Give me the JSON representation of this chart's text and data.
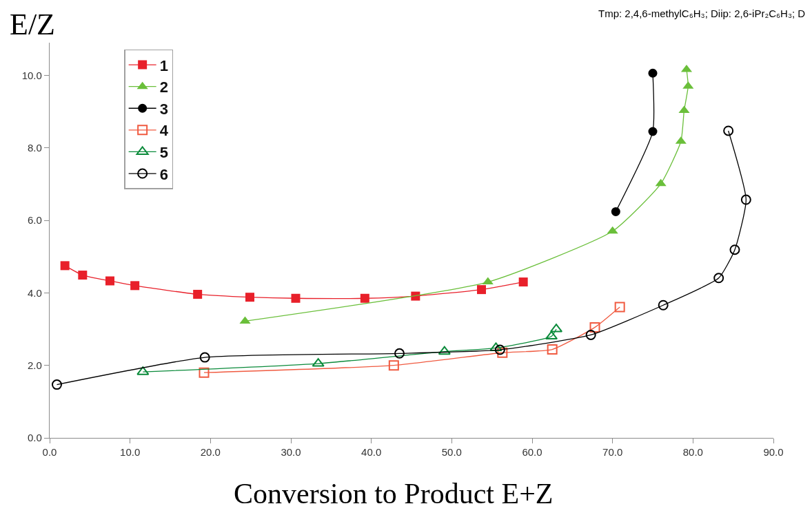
{
  "chart_data": {
    "type": "line",
    "xlabel": "Conversion to Product E+Z",
    "ylabel": "E/Z",
    "annotations": [
      "Tmp: 2,4,6-methylC₆H₃; Diip: 2,6-iPr₂C₆H₃; D"
    ],
    "xlim": [
      0,
      90
    ],
    "xticks": [
      {
        "value": 0,
        "label": "0.0"
      },
      {
        "value": 10,
        "label": "10.0"
      },
      {
        "value": 20,
        "label": "20.0"
      },
      {
        "value": 30,
        "label": "30.0"
      },
      {
        "value": 40,
        "label": "40.0"
      },
      {
        "value": 50,
        "label": "50.0"
      },
      {
        "value": 60,
        "label": "60.0"
      },
      {
        "value": 70,
        "label": "70.0"
      },
      {
        "value": 80,
        "label": "80.0"
      },
      {
        "value": 90,
        "label": "90.0"
      }
    ],
    "ylim": [
      0,
      10.9
    ],
    "yticks": [
      {
        "value": 0,
        "label": "0.0"
      },
      {
        "value": 2,
        "label": "2.0"
      },
      {
        "value": 4,
        "label": "4.0"
      },
      {
        "value": 6,
        "label": "6.0"
      },
      {
        "value": 8,
        "label": "8.0"
      },
      {
        "value": 10,
        "label": "10.0"
      }
    ],
    "grid": false,
    "legend": "top left",
    "line_style": "solid",
    "series": [
      {
        "name": "1",
        "color": "#e8202a",
        "marker": "square",
        "x": [
          1.9,
          4.1,
          7.5,
          10.6,
          18.4,
          24.9,
          30.6,
          39.2,
          45.5,
          53.7,
          58.9
        ],
        "values": [
          4.75,
          4.49,
          4.33,
          4.2,
          3.96,
          3.88,
          3.85,
          3.85,
          3.91,
          4.09,
          4.3
        ]
      },
      {
        "name": "2",
        "color": "#6abf3a",
        "marker": "triangle",
        "x": [
          24.3,
          54.5,
          70.0,
          76.0,
          78.5,
          78.9,
          79.4,
          79.2
        ],
        "values": [
          3.22,
          4.3,
          5.7,
          7.01,
          8.18,
          9.03,
          9.7,
          10.16
        ]
      },
      {
        "name": "3",
        "color": "#000000",
        "marker": "circle",
        "x": [
          70.4,
          75.0,
          75.0
        ],
        "values": [
          6.24,
          8.45,
          10.06
        ]
      },
      {
        "name": "4",
        "color": "#f05a40",
        "marker": "square-open",
        "x": [
          19.2,
          42.8,
          56.3,
          62.5,
          67.8,
          70.9
        ],
        "values": [
          1.8,
          2.0,
          2.35,
          2.44,
          3.05,
          3.61
        ]
      },
      {
        "name": "5",
        "color": "#0a8a3a",
        "marker": "triangle-open",
        "x": [
          11.6,
          33.4,
          49.1,
          55.5,
          62.4,
          63.0
        ],
        "values": [
          1.82,
          2.05,
          2.38,
          2.48,
          2.8,
          3.0
        ]
      },
      {
        "name": "6",
        "color": "#000000",
        "marker": "circle-open",
        "x": [
          0.9,
          19.3,
          43.5,
          56.0,
          67.3,
          76.3,
          83.2,
          85.2,
          86.6,
          84.4
        ],
        "values": [
          1.47,
          2.22,
          2.33,
          2.43,
          2.84,
          3.66,
          4.41,
          5.19,
          6.57,
          8.47
        ]
      }
    ]
  }
}
